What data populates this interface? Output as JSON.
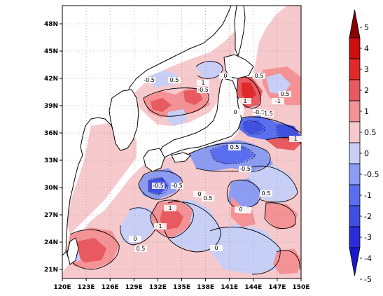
{
  "map": {
    "lon_ticks": [
      "120E",
      "123E",
      "126E",
      "129E",
      "132E",
      "135E",
      "138E",
      "141E",
      "144E",
      "147E",
      "150E"
    ],
    "lat_ticks": [
      "21N",
      "24N",
      "27N",
      "30N",
      "33N",
      "36N",
      "39N",
      "42N",
      "45N",
      "48N"
    ],
    "lon_range": [
      120,
      150
    ],
    "lat_range": [
      20,
      50
    ],
    "colors": {
      "neg5": "#1a1acc",
      "neg4": "#2b2bd9",
      "neg3": "#3f4fe0",
      "neg2": "#5a6ef0",
      "neg1": "#8c9cf2",
      "neg05": "#c8cff7",
      "pos05": "#f6c9cc",
      "pos1": "#f49296",
      "pos2": "#e85a5f",
      "pos3": "#e02a2a",
      "pos4": "#cc1010",
      "pos5": "#8b0000",
      "land": "#ffffff",
      "coast": "#000000"
    },
    "contour_labels": [
      "-0.5",
      "0.5",
      "1",
      "0",
      "-0.5",
      "0.5",
      "-1",
      "1",
      "0",
      "0.5",
      "-0.5",
      "1",
      "0.5",
      "-0.5",
      "0",
      "0.5",
      "0",
      "-0.5",
      "-0.5",
      "0",
      "1",
      "-1.5",
      "0",
      "0",
      "0.5",
      "0.5",
      "1"
    ]
  },
  "colorbar": {
    "labels": [
      "5",
      "4",
      "3",
      "2",
      "1",
      "0.5",
      "0",
      "-0.5",
      "-1",
      "-2",
      "-3",
      "-4",
      "-5"
    ],
    "colors": [
      "#8b0000",
      "#cc1010",
      "#e02a2a",
      "#e85a5f",
      "#f49296",
      "#f6c9cc",
      "#c8cff7",
      "#8c9cf2",
      "#5a6ef0",
      "#3f4fe0",
      "#2b2bd9",
      "#1a1acc"
    ]
  }
}
